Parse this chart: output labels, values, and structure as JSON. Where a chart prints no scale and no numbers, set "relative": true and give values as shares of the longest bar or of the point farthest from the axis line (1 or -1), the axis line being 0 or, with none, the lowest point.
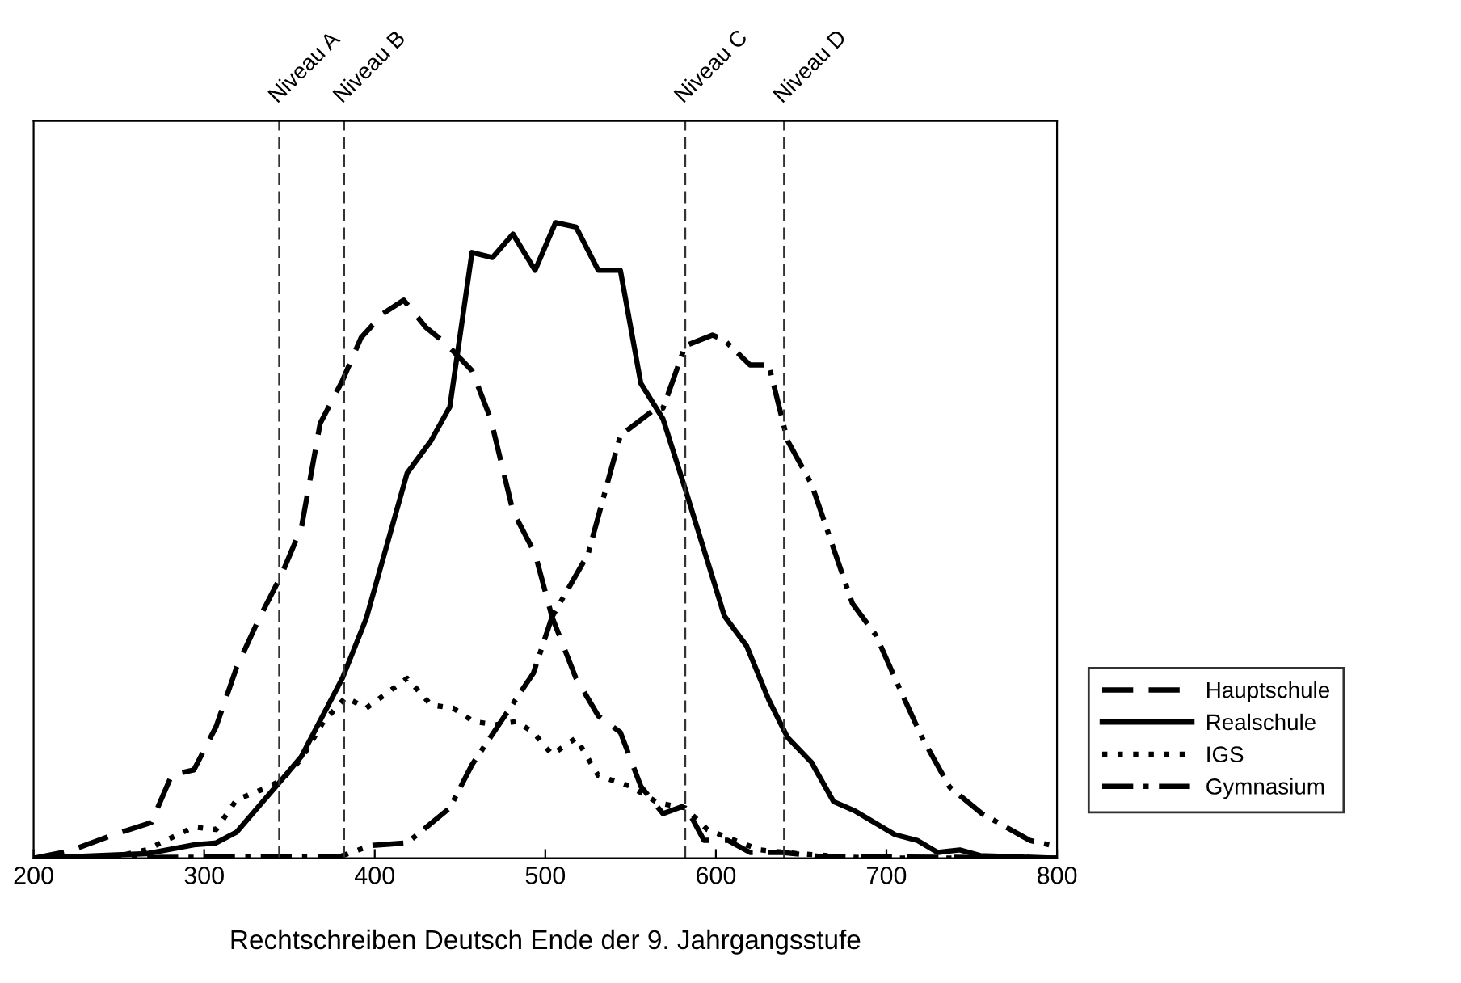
{
  "chart_data": {
    "type": "line",
    "relative": true,
    "xlabel": "Rechtschreiben Deutsch Ende der 9. Jahrgangsstufe",
    "xlim": [
      200,
      800
    ],
    "xticks": [
      200,
      300,
      400,
      500,
      600,
      700,
      800
    ],
    "grid": false,
    "legend": "right",
    "marker": "none",
    "series": [
      {
        "name": "Hauptschule",
        "color": "#000000",
        "line_style": "dashed",
        "x": [
          200,
          221,
          247,
          269,
          281,
          294,
          307,
          319,
          332,
          345,
          357,
          368,
          381,
          392,
          405,
          417,
          430,
          442,
          457,
          468,
          481,
          494,
          504,
          518,
          531,
          544,
          556,
          569,
          582,
          593,
          607,
          620,
          639,
          660,
          800
        ],
        "values": [
          0,
          0.011,
          0.037,
          0.056,
          0.131,
          0.139,
          0.207,
          0.3,
          0.376,
          0.444,
          0.52,
          0.684,
          0.751,
          0.819,
          0.857,
          0.878,
          0.835,
          0.809,
          0.767,
          0.691,
          0.546,
          0.479,
          0.379,
          0.283,
          0.224,
          0.198,
          0.113,
          0.07,
          0.083,
          0.028,
          0.028,
          0.009,
          0.009,
          0.003,
          0
        ]
      },
      {
        "name": "Realschule",
        "color": "#000000",
        "line_style": "solid",
        "x": [
          200,
          266,
          294,
          307,
          319,
          345,
          357,
          381,
          395,
          419,
          433,
          444,
          457,
          469,
          481,
          494,
          506,
          518,
          531,
          544,
          556,
          569,
          582,
          605,
          618,
          631,
          642,
          656,
          669,
          681,
          705,
          718,
          730,
          743,
          755,
          800
        ],
        "values": [
          0,
          0.007,
          0.021,
          0.024,
          0.041,
          0.122,
          0.16,
          0.283,
          0.377,
          0.606,
          0.657,
          0.71,
          0.953,
          0.945,
          0.982,
          0.925,
          1,
          0.993,
          0.925,
          0.925,
          0.747,
          0.691,
          0.581,
          0.381,
          0.334,
          0.249,
          0.19,
          0.151,
          0.089,
          0.075,
          0.037,
          0.028,
          0.009,
          0.013,
          0.004,
          0
        ]
      },
      {
        "name": "IGS",
        "color": "#000000",
        "line_style": "dotted",
        "x": [
          200,
          244,
          266,
          294,
          307,
          319,
          335,
          345,
          357,
          370,
          383,
          395,
          419,
          433,
          446,
          458,
          471,
          483,
          493,
          504,
          518,
          531,
          550,
          566,
          582,
          595,
          611,
          626,
          648,
          690,
          800
        ],
        "values": [
          0,
          0,
          0.013,
          0.049,
          0.045,
          0.092,
          0.109,
          0.122,
          0.156,
          0.215,
          0.253,
          0.236,
          0.283,
          0.241,
          0.236,
          0.215,
          0.21,
          0.215,
          0.198,
          0.163,
          0.189,
          0.13,
          0.113,
          0.087,
          0.079,
          0.045,
          0.028,
          0.013,
          0.007,
          0,
          0
        ]
      },
      {
        "name": "Gymnasium",
        "color": "#000000",
        "line_style": "dashdot",
        "x": [
          200,
          380,
          398,
          419,
          444,
          457,
          474,
          493,
          504,
          525,
          544,
          563,
          569,
          582,
          598,
          605,
          620,
          631,
          642,
          656,
          680,
          694,
          708,
          721,
          737,
          756,
          784,
          800
        ],
        "values": [
          0,
          0.003,
          0.02,
          0.024,
          0.079,
          0.147,
          0.215,
          0.291,
          0.38,
          0.478,
          0.665,
          0.704,
          0.708,
          0.806,
          0.823,
          0.815,
          0.776,
          0.776,
          0.657,
          0.589,
          0.401,
          0.35,
          0.265,
          0.189,
          0.112,
          0.07,
          0.028,
          0.018
        ]
      }
    ],
    "ref_lines": [
      {
        "axis": "x",
        "value": 344,
        "label": "Niveau A",
        "color": "#333333",
        "line_style": "dashed"
      },
      {
        "axis": "x",
        "value": 382,
        "label": "Niveau B",
        "color": "#333333",
        "line_style": "dashed"
      },
      {
        "axis": "x",
        "value": 582,
        "label": "Niveau C",
        "color": "#333333",
        "line_style": "dashed"
      },
      {
        "axis": "x",
        "value": 640,
        "label": "Niveau D",
        "color": "#333333",
        "line_style": "dashed"
      }
    ]
  }
}
